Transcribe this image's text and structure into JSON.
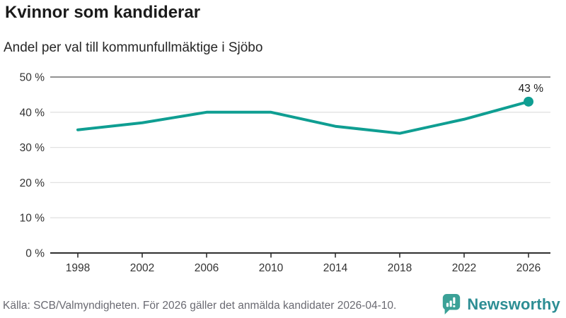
{
  "header": {
    "title": "Kvinnor som kandiderar",
    "subtitle": "Andel per val till kommunfullmäktige i Sjöbo"
  },
  "footer": {
    "source": "Källa: SCB/Valmyndigheten. För 2026 gäller det anmälda kandidater 2026-04-10.",
    "brand": "Newsworthy"
  },
  "colors": {
    "line": "#0f9e92",
    "point": "#0f9e92",
    "grid": "#e2e2e2",
    "grid_top": "#6e6e6e",
    "axis": "#2f2f2f",
    "tick_text": "#333333",
    "data_label": "#1a1a1a",
    "logo_icon": "#3ba197",
    "logo_text": "#2d8e94"
  },
  "chart_data": {
    "type": "line",
    "title": "Kvinnor som kandiderar",
    "subtitle": "Andel per val till kommunfullmäktige i Sjöbo",
    "x": [
      1998,
      2002,
      2006,
      2010,
      2014,
      2018,
      2022,
      2026
    ],
    "series": [
      {
        "name": "Andel kvinnor som kandiderar",
        "values": [
          35,
          37,
          40,
          40,
          36,
          34,
          38,
          43
        ]
      }
    ],
    "end_label": "43 %",
    "xlabel": "",
    "ylabel": "",
    "ylim": [
      0,
      50
    ],
    "yticks": [
      0,
      10,
      20,
      30,
      40,
      50
    ],
    "ytick_suffix": " %",
    "grid": true,
    "legend": "none"
  }
}
